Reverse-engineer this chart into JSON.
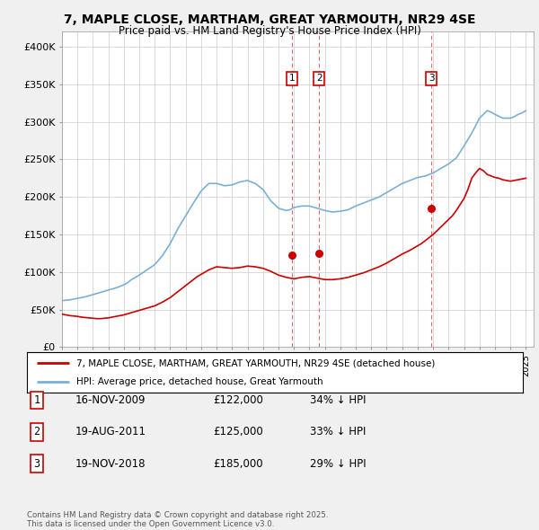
{
  "title": "7, MAPLE CLOSE, MARTHAM, GREAT YARMOUTH, NR29 4SE",
  "subtitle": "Price paid vs. HM Land Registry's House Price Index (HPI)",
  "ylim": [
    0,
    420000
  ],
  "yticks": [
    0,
    50000,
    100000,
    150000,
    200000,
    250000,
    300000,
    350000,
    400000
  ],
  "ytick_labels": [
    "£0",
    "£50K",
    "£100K",
    "£150K",
    "£200K",
    "£250K",
    "£300K",
    "£350K",
    "£400K"
  ],
  "xlim_start": 1995.0,
  "xlim_end": 2025.5,
  "background_color": "#f0f0f0",
  "plot_background": "#ffffff",
  "red_line_color": "#cc0000",
  "blue_line_color": "#7ab0d4",
  "transaction_line_color": "#cc0000",
  "transactions": [
    {
      "num": 1,
      "date_str": "16-NOV-2009",
      "date_x": 2009.88,
      "price": 122000,
      "pct": "34%",
      "label": "1"
    },
    {
      "num": 2,
      "date_str": "19-AUG-2011",
      "date_x": 2011.63,
      "price": 125000,
      "pct": "33%",
      "label": "2"
    },
    {
      "num": 3,
      "date_str": "19-NOV-2018",
      "date_x": 2018.88,
      "price": 185000,
      "pct": "29%",
      "label": "3"
    }
  ],
  "legend_label_red": "7, MAPLE CLOSE, MARTHAM, GREAT YARMOUTH, NR29 4SE (detached house)",
  "legend_label_blue": "HPI: Average price, detached house, Great Yarmouth",
  "footnote": "Contains HM Land Registry data © Crown copyright and database right 2025.\nThis data is licensed under the Open Government Licence v3.0.",
  "hpi_years": [
    1995.0,
    1995.25,
    1995.5,
    1995.75,
    1996.0,
    1996.25,
    1996.5,
    1996.75,
    1997.0,
    1997.25,
    1997.5,
    1997.75,
    1998.0,
    1998.25,
    1998.5,
    1998.75,
    1999.0,
    1999.25,
    1999.5,
    1999.75,
    2000.0,
    2000.25,
    2000.5,
    2000.75,
    2001.0,
    2001.25,
    2001.5,
    2001.75,
    2002.0,
    2002.25,
    2002.5,
    2002.75,
    2003.0,
    2003.25,
    2003.5,
    2003.75,
    2004.0,
    2004.25,
    2004.5,
    2004.75,
    2005.0,
    2005.25,
    2005.5,
    2005.75,
    2006.0,
    2006.25,
    2006.5,
    2006.75,
    2007.0,
    2007.25,
    2007.5,
    2007.75,
    2008.0,
    2008.25,
    2008.5,
    2008.75,
    2009.0,
    2009.25,
    2009.5,
    2009.75,
    2010.0,
    2010.25,
    2010.5,
    2010.75,
    2011.0,
    2011.25,
    2011.5,
    2011.75,
    2012.0,
    2012.25,
    2012.5,
    2012.75,
    2013.0,
    2013.25,
    2013.5,
    2013.75,
    2014.0,
    2014.25,
    2014.5,
    2014.75,
    2015.0,
    2015.25,
    2015.5,
    2015.75,
    2016.0,
    2016.25,
    2016.5,
    2016.75,
    2017.0,
    2017.25,
    2017.5,
    2017.75,
    2018.0,
    2018.25,
    2018.5,
    2018.75,
    2019.0,
    2019.25,
    2019.5,
    2019.75,
    2020.0,
    2020.25,
    2020.5,
    2020.75,
    2021.0,
    2021.25,
    2021.5,
    2021.75,
    2022.0,
    2022.25,
    2022.5,
    2022.75,
    2023.0,
    2023.25,
    2023.5,
    2023.75,
    2024.0,
    2024.25,
    2024.5,
    2024.75,
    2025.0
  ],
  "hpi_values": [
    62000,
    62500,
    63000,
    64000,
    65000,
    66000,
    67000,
    68500,
    70000,
    71500,
    73000,
    74500,
    76000,
    77500,
    79000,
    81000,
    83000,
    86000,
    90000,
    93000,
    96000,
    99500,
    103000,
    106500,
    110000,
    116000,
    122000,
    130000,
    138000,
    148000,
    158000,
    166500,
    175000,
    183500,
    192000,
    200000,
    208000,
    213000,
    218000,
    218000,
    218000,
    216500,
    215000,
    215500,
    216000,
    218000,
    220000,
    221000,
    222000,
    220000,
    218000,
    214000,
    210000,
    202500,
    195000,
    190000,
    185000,
    183500,
    182000,
    183000,
    186000,
    187000,
    188000,
    188000,
    188000,
    186500,
    185000,
    183500,
    182000,
    181000,
    180000,
    180500,
    181000,
    182000,
    183000,
    185500,
    188000,
    190000,
    192000,
    194000,
    196000,
    198000,
    200000,
    203000,
    206000,
    209000,
    212000,
    215000,
    218000,
    220000,
    222000,
    224000,
    226000,
    227000,
    228000,
    230000,
    232000,
    235000,
    238000,
    241000,
    244000,
    248000,
    252000,
    260000,
    268000,
    276500,
    285000,
    295000,
    305000,
    310000,
    315000,
    313000,
    310000,
    307500,
    305000,
    305000,
    305000,
    307000,
    310000,
    312000,
    315000
  ],
  "red_years": [
    1995.0,
    1995.25,
    1995.5,
    1995.75,
    1996.0,
    1996.25,
    1996.5,
    1996.75,
    1997.0,
    1997.25,
    1997.5,
    1997.75,
    1998.0,
    1998.25,
    1998.5,
    1998.75,
    1999.0,
    1999.25,
    1999.5,
    1999.75,
    2000.0,
    2000.25,
    2000.5,
    2000.75,
    2001.0,
    2001.25,
    2001.5,
    2001.75,
    2002.0,
    2002.25,
    2002.5,
    2002.75,
    2003.0,
    2003.25,
    2003.5,
    2003.75,
    2004.0,
    2004.25,
    2004.5,
    2004.75,
    2005.0,
    2005.25,
    2005.5,
    2005.75,
    2006.0,
    2006.25,
    2006.5,
    2006.75,
    2007.0,
    2007.25,
    2007.5,
    2007.75,
    2008.0,
    2008.25,
    2008.5,
    2008.75,
    2009.0,
    2009.25,
    2009.5,
    2009.75,
    2010.0,
    2010.25,
    2010.5,
    2010.75,
    2011.0,
    2011.25,
    2011.5,
    2011.75,
    2012.0,
    2012.25,
    2012.5,
    2012.75,
    2013.0,
    2013.25,
    2013.5,
    2013.75,
    2014.0,
    2014.25,
    2014.5,
    2014.75,
    2015.0,
    2015.25,
    2015.5,
    2015.75,
    2016.0,
    2016.25,
    2016.5,
    2016.75,
    2017.0,
    2017.25,
    2017.5,
    2017.75,
    2018.0,
    2018.25,
    2018.5,
    2018.75,
    2019.0,
    2019.25,
    2019.5,
    2019.75,
    2020.0,
    2020.25,
    2020.5,
    2020.75,
    2021.0,
    2021.25,
    2021.5,
    2021.75,
    2022.0,
    2022.25,
    2022.5,
    2022.75,
    2023.0,
    2023.25,
    2023.5,
    2023.75,
    2024.0,
    2024.25,
    2024.5,
    2024.75,
    2025.0
  ],
  "red_values": [
    44000,
    43000,
    42000,
    41500,
    41000,
    40000,
    39500,
    39000,
    38500,
    38000,
    38000,
    38500,
    39000,
    40000,
    41000,
    42000,
    43000,
    44500,
    46000,
    47500,
    49000,
    50500,
    52000,
    53500,
    55000,
    57500,
    60000,
    63000,
    66000,
    70000,
    74000,
    78000,
    82000,
    86000,
    90000,
    94000,
    97000,
    100000,
    103000,
    105000,
    107000,
    106500,
    106000,
    105500,
    105000,
    105500,
    106000,
    107000,
    108000,
    107500,
    107000,
    106000,
    105000,
    103000,
    101000,
    98500,
    96000,
    94500,
    93000,
    92000,
    91000,
    92000,
    93000,
    93500,
    94000,
    93000,
    92000,
    91000,
    90000,
    90000,
    90000,
    90500,
    91000,
    92000,
    93000,
    94500,
    96000,
    97500,
    99000,
    101000,
    103000,
    105000,
    107000,
    109500,
    112000,
    115000,
    118000,
    121000,
    124000,
    126500,
    129000,
    132000,
    135000,
    138000,
    142000,
    146000,
    150000,
    155000,
    160000,
    165000,
    170000,
    175000,
    182000,
    190000,
    198000,
    210000,
    225000,
    232000,
    238000,
    235000,
    230000,
    228000,
    226000,
    225000,
    223000,
    222000,
    221000,
    222000,
    223000,
    224000,
    225000
  ]
}
